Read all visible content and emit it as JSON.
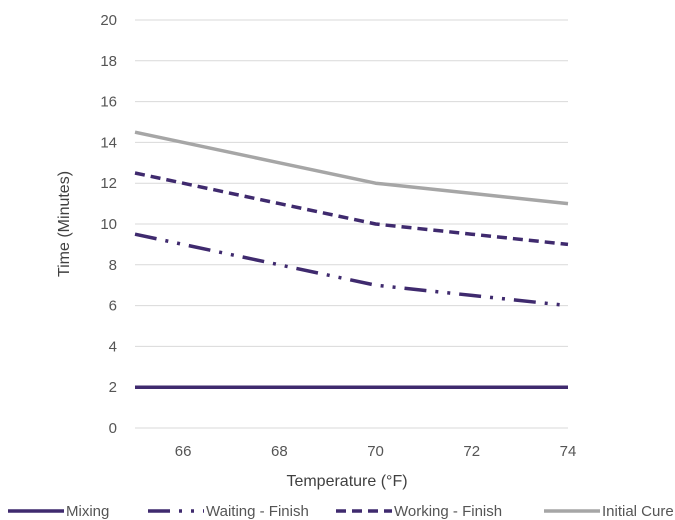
{
  "chart_data": {
    "type": "line",
    "title": "",
    "xlabel": "Temperature (°F)",
    "ylabel": "Time (Minutes)",
    "xlim": [
      65,
      74
    ],
    "ylim": [
      0,
      20
    ],
    "xticks": [
      66,
      68,
      70,
      72,
      74
    ],
    "yticks": [
      0,
      2,
      4,
      6,
      8,
      10,
      12,
      14,
      16,
      18,
      20
    ],
    "grid": "horizontal",
    "legend_position": "bottom",
    "series": [
      {
        "name": "Mixing",
        "color": "#3f2a6e",
        "style": "solid",
        "points": [
          [
            65,
            2
          ],
          [
            68,
            2
          ],
          [
            70,
            2
          ],
          [
            72,
            2
          ],
          [
            74,
            2
          ]
        ]
      },
      {
        "name": "Waiting - Finish",
        "color": "#3f2a6e",
        "style": "long-dash-dot-dot",
        "points": [
          [
            65,
            9.5
          ],
          [
            68,
            8
          ],
          [
            70,
            7
          ],
          [
            72,
            6.5
          ],
          [
            74,
            6
          ]
        ]
      },
      {
        "name": "Working - Finish",
        "color": "#3f2a6e",
        "style": "dashed",
        "points": [
          [
            65,
            12.5
          ],
          [
            68,
            11
          ],
          [
            70,
            10
          ],
          [
            72,
            9.5
          ],
          [
            74,
            9
          ]
        ]
      },
      {
        "name": "Initial Cure",
        "color": "#a6a6a6",
        "style": "solid",
        "points": [
          [
            65,
            14.5
          ],
          [
            68,
            13
          ],
          [
            70,
            12
          ],
          [
            72,
            11.5
          ],
          [
            74,
            11
          ]
        ]
      }
    ]
  }
}
